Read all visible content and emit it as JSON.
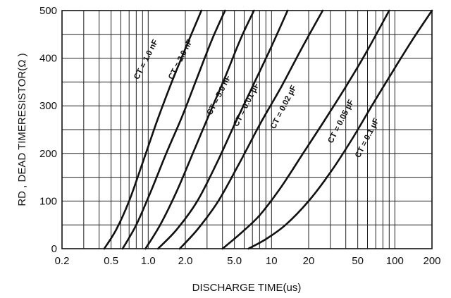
{
  "chart_data": {
    "type": "line",
    "xlabel": "DISCHARGE TIME(us)",
    "ylabel": "RD , DEAD TIMERESISTOR(Ω )",
    "x_scale": "log",
    "xlim": [
      0.2,
      200
    ],
    "ylim": [
      0,
      500
    ],
    "grid": true,
    "x_ticks": [
      0.2,
      0.5,
      1.0,
      2.0,
      5.0,
      10,
      20,
      50,
      100,
      200
    ],
    "x_tick_labels": [
      "0.2",
      "0.5",
      "1.0",
      "2.0",
      "5.0",
      "10",
      "20",
      "50",
      "100",
      "200"
    ],
    "y_ticks": [
      0,
      100,
      200,
      300,
      400,
      500
    ],
    "y_tick_labels": [
      "0",
      "100",
      "200",
      "300",
      "400",
      "500"
    ],
    "series": [
      {
        "name": "CT = 1.0 nF",
        "label_at": [
          1.0,
          395
        ],
        "x": [
          0.44,
          0.55,
          0.7,
          0.9,
          1.15,
          1.5,
          2.0,
          2.7
        ],
        "y": [
          0,
          40,
          100,
          180,
          260,
          340,
          420,
          500
        ]
      },
      {
        "name": "CT = 2.0 nF",
        "label_at": [
          1.9,
          395
        ],
        "x": [
          0.62,
          0.8,
          1.05,
          1.4,
          1.9,
          2.5,
          3.3,
          4.2
        ],
        "y": [
          0,
          50,
          120,
          200,
          280,
          360,
          440,
          500
        ]
      },
      {
        "name": "CT = 5.0 nF",
        "label_at": [
          3.9,
          320
        ],
        "x": [
          0.95,
          1.25,
          1.7,
          2.3,
          3.1,
          4.2,
          5.6,
          7.2
        ],
        "y": [
          0,
          50,
          120,
          200,
          280,
          360,
          440,
          500
        ]
      },
      {
        "name": "CT = 0.01 µF",
        "label_at": [
          6.5,
          300
        ],
        "x": [
          1.2,
          1.7,
          2.5,
          3.6,
          5.0,
          7.0,
          9.8,
          13.5
        ],
        "y": [
          0,
          40,
          100,
          180,
          260,
          340,
          420,
          500
        ]
      },
      {
        "name": "CT = 0.02 µF",
        "label_at": [
          13.0,
          295
        ],
        "x": [
          1.8,
          2.5,
          3.7,
          5.5,
          8.0,
          12.0,
          17.5,
          26.0
        ],
        "y": [
          0,
          40,
          100,
          180,
          260,
          340,
          420,
          500
        ]
      },
      {
        "name": "CT = 0.05 µF",
        "label_at": [
          38.0,
          265
        ],
        "x": [
          4.0,
          5.5,
          8.0,
          12.0,
          18.0,
          27.0,
          40.0,
          58.0,
          90.0
        ],
        "y": [
          0,
          30,
          70,
          130,
          200,
          270,
          340,
          410,
          500
        ]
      },
      {
        "name": "CT = 0.1 µF",
        "label_at": [
          62.0,
          230
        ],
        "x": [
          6.5,
          9.0,
          13.0,
          20.0,
          30.0,
          45.0,
          65.0,
          95.0,
          140.0,
          200.0
        ],
        "y": [
          0,
          20,
          50,
          100,
          160,
          230,
          300,
          370,
          440,
          500
        ]
      }
    ]
  }
}
